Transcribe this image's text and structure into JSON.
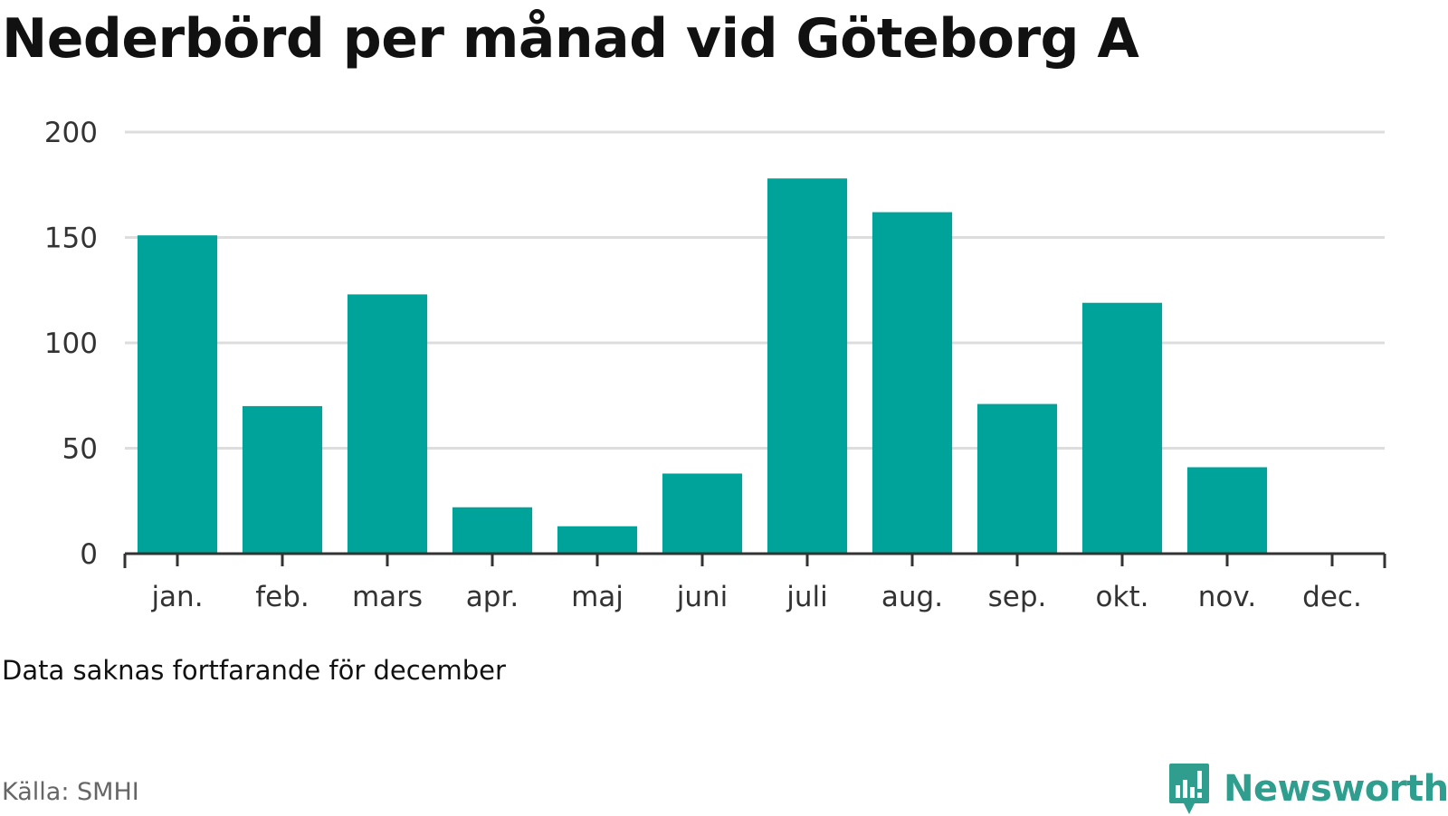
{
  "title": "Nederbörd per månad vid Göteborg A",
  "note": "Data saknas fortfarande för december",
  "source": "Källa: SMHI",
  "brand": {
    "name": "Newsworthy",
    "icon": "newsworthy-chart-icon",
    "color": "#2f9e8f"
  },
  "colors": {
    "bar": "#00a39a",
    "grid": "#dddddd",
    "axis": "#333333"
  },
  "chart_data": {
    "type": "bar",
    "title": "Nederbörd per månad vid Göteborg A",
    "categories": [
      "jan.",
      "feb.",
      "mars",
      "apr.",
      "maj",
      "juni",
      "juli",
      "aug.",
      "sep.",
      "okt.",
      "nov.",
      "dec."
    ],
    "values": [
      151,
      70,
      123,
      22,
      13,
      38,
      178,
      162,
      71,
      119,
      41,
      null
    ],
    "ylim": [
      0,
      200
    ],
    "yticks": [
      0,
      50,
      100,
      150,
      200
    ],
    "grid": true,
    "legend": "none",
    "xlabel": "",
    "ylabel": ""
  }
}
